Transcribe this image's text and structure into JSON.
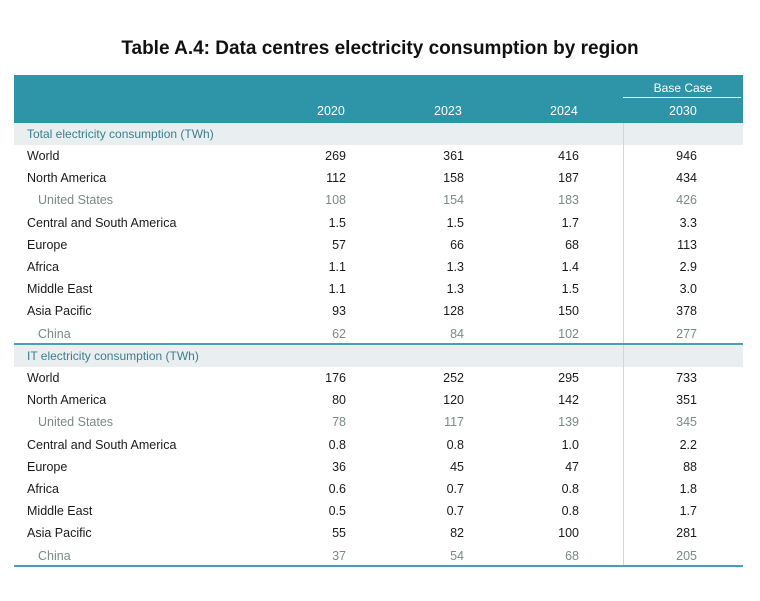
{
  "title": "Table A.4: Data centres electricity consumption by region",
  "header": {
    "base_case": "Base Case",
    "years": [
      "2020",
      "2023",
      "2024",
      "2030"
    ]
  },
  "sections": [
    {
      "label": "Total electricity consumption (TWh)",
      "rows": [
        {
          "label": "World",
          "sub": false,
          "values": [
            "269",
            "361",
            "416",
            "946"
          ]
        },
        {
          "label": "North America",
          "sub": false,
          "values": [
            "112",
            "158",
            "187",
            "434"
          ]
        },
        {
          "label": "United States",
          "sub": true,
          "values": [
            "108",
            "154",
            "183",
            "426"
          ]
        },
        {
          "label": "Central and South America",
          "sub": false,
          "values": [
            "1.5",
            "1.5",
            "1.7",
            "3.3"
          ]
        },
        {
          "label": "Europe",
          "sub": false,
          "values": [
            "57",
            "66",
            "68",
            "113"
          ]
        },
        {
          "label": "Africa",
          "sub": false,
          "values": [
            "1.1",
            "1.3",
            "1.4",
            "2.9"
          ]
        },
        {
          "label": "Middle East",
          "sub": false,
          "values": [
            "1.1",
            "1.3",
            "1.5",
            "3.0"
          ]
        },
        {
          "label": "Asia Pacific",
          "sub": false,
          "values": [
            "93",
            "128",
            "150",
            "378"
          ]
        },
        {
          "label": "China",
          "sub": true,
          "values": [
            "62",
            "84",
            "102",
            "277"
          ]
        }
      ]
    },
    {
      "label": "IT electricity consumption (TWh)",
      "rows": [
        {
          "label": "World",
          "sub": false,
          "values": [
            "176",
            "252",
            "295",
            "733"
          ]
        },
        {
          "label": "North America",
          "sub": false,
          "values": [
            "80",
            "120",
            "142",
            "351"
          ]
        },
        {
          "label": "United States",
          "sub": true,
          "values": [
            "78",
            "117",
            "139",
            "345"
          ]
        },
        {
          "label": "Central and South America",
          "sub": false,
          "values": [
            "0.8",
            "0.8",
            "1.0",
            "2.2"
          ]
        },
        {
          "label": "Europe",
          "sub": false,
          "values": [
            "36",
            "45",
            "47",
            "88"
          ]
        },
        {
          "label": "Africa",
          "sub": false,
          "values": [
            "0.6",
            "0.7",
            "0.8",
            "1.8"
          ]
        },
        {
          "label": "Middle East",
          "sub": false,
          "values": [
            "0.5",
            "0.7",
            "0.8",
            "1.7"
          ]
        },
        {
          "label": "Asia Pacific",
          "sub": false,
          "values": [
            "55",
            "82",
            "100",
            "281"
          ]
        },
        {
          "label": "China",
          "sub": true,
          "values": [
            "37",
            "54",
            "68",
            "205"
          ]
        }
      ]
    }
  ]
}
